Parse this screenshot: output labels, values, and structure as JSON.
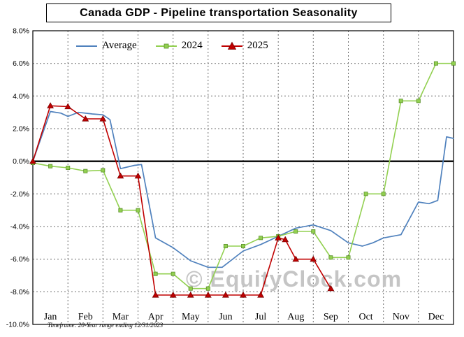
{
  "page": {
    "title": "Canada GDP - Pipeline transportation Seasonality",
    "watermark": "© EquityClock.com",
    "footnote": "Timeframe: 20-Year range ending 12/31/2023"
  },
  "legend": {
    "position": "top-left-inside",
    "items": [
      {
        "label": "Average"
      },
      {
        "label": "2024"
      },
      {
        "label": "2025"
      }
    ]
  },
  "chart_data": {
    "type": "line",
    "title": "Canada GDP - Pipeline transportation Seasonality",
    "x_unit": "month fraction (0 = start of Jan, 12 = end of Dec)",
    "y_unit": "percent change",
    "grid": true,
    "ylim": [
      -10,
      8
    ],
    "x_axis": {
      "categories": [
        "Jan",
        "Feb",
        "Mar",
        "Apr",
        "May",
        "Jun",
        "Jul",
        "Aug",
        "Sep",
        "Oct",
        "Nov",
        "Dec"
      ]
    },
    "y_axis": {
      "min": -10,
      "max": 8,
      "tick_step": 2,
      "ticks": [
        {
          "value": 8,
          "label": "8.0%"
        },
        {
          "value": 6,
          "label": "6.0%"
        },
        {
          "value": 4,
          "label": "4.0%"
        },
        {
          "value": 2,
          "label": "2.0%"
        },
        {
          "value": 0,
          "label": "0.0%"
        },
        {
          "value": -2,
          "label": "-2.0%"
        },
        {
          "value": -4,
          "label": "-4.0%"
        },
        {
          "value": -6,
          "label": "-6.0%"
        },
        {
          "value": -8,
          "label": "-8.0%"
        },
        {
          "value": -10,
          "label": "-10.0%"
        }
      ]
    },
    "series": [
      {
        "name": "Average",
        "color": "#4f81bd",
        "marker": "none",
        "line_width": 1.7,
        "points": [
          [
            0,
            0.0
          ],
          [
            0.5,
            3.05
          ],
          [
            0.8,
            2.95
          ],
          [
            1,
            2.75
          ],
          [
            1.3,
            3.0
          ],
          [
            1.7,
            2.9
          ],
          [
            2,
            2.85
          ],
          [
            2.2,
            2.55
          ],
          [
            2.5,
            -0.45
          ],
          [
            2.9,
            -0.25
          ],
          [
            3.1,
            -0.2
          ],
          [
            3.5,
            -4.7
          ],
          [
            4,
            -5.3
          ],
          [
            4.5,
            -6.1
          ],
          [
            5,
            -6.5
          ],
          [
            5.4,
            -6.5
          ],
          [
            6,
            -5.5
          ],
          [
            6.5,
            -5.1
          ],
          [
            7,
            -4.6
          ],
          [
            7.5,
            -4.1
          ],
          [
            8,
            -3.9
          ],
          [
            8.5,
            -4.25
          ],
          [
            9,
            -5.0
          ],
          [
            9.4,
            -5.2
          ],
          [
            9.7,
            -5.0
          ],
          [
            10,
            -4.7
          ],
          [
            10.5,
            -4.5
          ],
          [
            11,
            -2.5
          ],
          [
            11.3,
            -2.6
          ],
          [
            11.55,
            -2.4
          ],
          [
            11.8,
            1.5
          ],
          [
            12,
            1.4
          ]
        ]
      },
      {
        "name": "2024",
        "color": "#92d050",
        "marker": "square",
        "marker_edge": "#5a8f2a",
        "line_width": 1.6,
        "points": [
          [
            0,
            -0.1
          ],
          [
            0.5,
            -0.3
          ],
          [
            1,
            -0.4
          ],
          [
            1.5,
            -0.6
          ],
          [
            2,
            -0.55
          ],
          [
            2.5,
            -3.0
          ],
          [
            3,
            -3.0
          ],
          [
            3.5,
            -6.9
          ],
          [
            4,
            -6.9
          ],
          [
            4.5,
            -7.8
          ],
          [
            5,
            -7.8
          ],
          [
            5.5,
            -5.2
          ],
          [
            6,
            -5.2
          ],
          [
            6.5,
            -4.7
          ],
          [
            7,
            -4.6
          ],
          [
            7.5,
            -4.3
          ],
          [
            8,
            -4.3
          ],
          [
            8.5,
            -5.9
          ],
          [
            9,
            -5.9
          ],
          [
            9.5,
            -2.0
          ],
          [
            10,
            -2.0
          ],
          [
            10.5,
            3.7
          ],
          [
            11,
            3.7
          ],
          [
            11.5,
            6.0
          ],
          [
            12,
            6.0
          ]
        ]
      },
      {
        "name": "2025",
        "color": "#c00000",
        "marker": "triangle",
        "marker_edge": "#7a0000",
        "line_width": 1.6,
        "points": [
          [
            0,
            0.0
          ],
          [
            0.5,
            3.4
          ],
          [
            1,
            3.35
          ],
          [
            1.5,
            2.6
          ],
          [
            2,
            2.6
          ],
          [
            2.5,
            -0.9
          ],
          [
            3,
            -0.9
          ],
          [
            3.5,
            -8.2
          ],
          [
            4,
            -8.2
          ],
          [
            4.5,
            -8.2
          ],
          [
            5,
            -8.2
          ],
          [
            5.5,
            -8.2
          ],
          [
            6,
            -8.2
          ],
          [
            6.5,
            -8.2
          ],
          [
            7,
            -4.7
          ],
          [
            7.2,
            -4.8
          ],
          [
            7.5,
            -6.0
          ],
          [
            8,
            -6.0
          ],
          [
            8.5,
            -7.8
          ]
        ]
      }
    ]
  }
}
